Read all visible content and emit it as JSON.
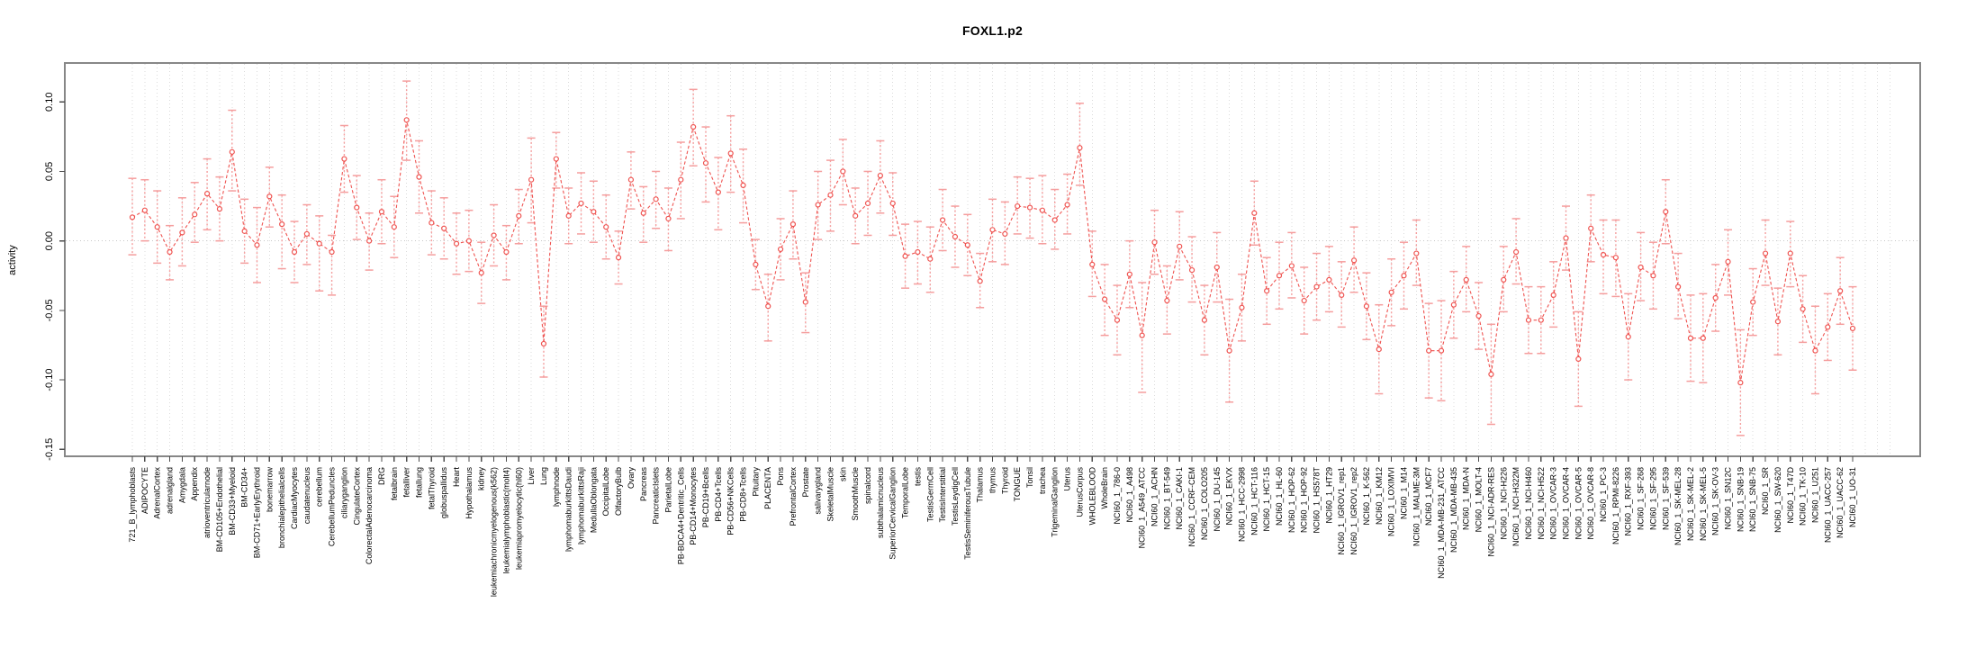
{
  "chart_data": {
    "type": "line",
    "title": "FOXL1.p2",
    "ylabel": "activity",
    "xlabel": "",
    "legend": "none",
    "grid": "vertical dotted gridline per category; dotted horizontal line at y=0",
    "marker": "open-circle",
    "series_color": "#ef5350",
    "errorbar_color": "#f59e9e",
    "grid_color": "#dbdbdb",
    "zero_line_color": "#c6c6c6",
    "box_color": "#878787",
    "tick_color": "#4d4d4d",
    "ylim": [
      -0.155,
      0.128
    ],
    "yticks": [
      0.1,
      0.05,
      0.0,
      -0.05,
      -0.1,
      -0.15
    ],
    "ytick_labels": [
      "0.10",
      "0.05",
      "0.00",
      "-0.05",
      "-0.10",
      "-0.15"
    ],
    "categories": [
      "721_B_lymphoblasts",
      "ADIPOCYTE",
      "AdrenalCortex",
      "adrenalgland",
      "Amygdala",
      "Appendix",
      "atrioventricularnode",
      "BM-CD105+Endothelial",
      "BM-CD33+Myeloid",
      "BM-CD34+",
      "BM-CD71+EarlyErythroid",
      "bonemarrow",
      "bronchialepithelialcells",
      "CardiacMyocytes",
      "caudatenucleus",
      "cerebellum",
      "CerebellumPeduncles",
      "ciliaryganglion",
      "CingulateCortex",
      "ColorectalAdenocarcinoma",
      "DRG",
      "fetalbrain",
      "fetalliver",
      "fetallung",
      "fetalThyroid",
      "globuspallidus",
      "Heart",
      "Hypothalamus",
      "kidney",
      "leukemiachronicmyelogenous(k562)",
      "leukemialymphoblastic(molt4)",
      "leukemiapromyelocytic(hl60)",
      "Liver",
      "Lung",
      "lymphnode",
      "lymphomaburkittsDaudi",
      "lymphomaburkittsRaji",
      "MedullaOblongata",
      "OccipitalLobe",
      "OlfactoryBulb",
      "Ovary",
      "Pancreas",
      "PancreaticIslets",
      "ParietalLobe",
      "PB-BDCA4+Dentritic_Cells",
      "PB-CD14+Monocytes",
      "PB-CD19+Bcells",
      "PB-CD4+Tcells",
      "PB-CD56+NKCells",
      "PB-CD8+Tcells",
      "Pituitary",
      "PLACENTA",
      "Pons",
      "PrefrontalCortex",
      "Prostate",
      "salivarygland",
      "SkeletalMuscle",
      "skin",
      "SmoothMuscle",
      "spinalcord",
      "subthalamicnucleus",
      "SuperiorCervicalGanglion",
      "TemporalLobe",
      "testis",
      "TestisGermCell",
      "TestisInterstitial",
      "TestisLeydigCell",
      "TestisSeminiferousTubule",
      "Thalamus",
      "thymus",
      "Thyroid",
      "TONGUE",
      "Tonsil",
      "trachea",
      "TrigeminalGanglion",
      "Uterus",
      "UterusCorpus",
      "WHOLEBLOOD",
      "WholeBrain",
      "NCI60_1_786-0",
      "NCI60_1_A498",
      "NCI60_1_A549_ATCC",
      "NCI60_1_ACHN",
      "NCI60_1_BT-549",
      "NCI60_1_CAKI-1",
      "NCI60_1_CCRF-CEM",
      "NCI60_1_COLO205",
      "NCI60_1_DU-145",
      "NCI60_1_EKVX",
      "NCI60_1_HCC-2998",
      "NCI60_1_HCT-116",
      "NCI60_1_HCT-15",
      "NCI60_1_HL-60",
      "NCI60_1_HOP-62",
      "NCI60_1_HOP-92",
      "NCI60_1_HS578T",
      "NCI60_1_HT29",
      "NCI60_1_IGROV1_rep1",
      "NCI60_1_IGROV1_rep2",
      "NCI60_1_K-562",
      "NCI60_1_KM12",
      "NCI60_1_LOXIMVI",
      "NCI60_1_M14",
      "NCI60_1_MALME-3M",
      "NCI60_1_MCF7",
      "NCI60_1_MDA-MB-231_ATCC",
      "NCI60_1_MDA-MB-435",
      "NCI60_1_MDA-N",
      "NCI60_1_MOLT-4",
      "NCI60_1_NCI-ADR-RES",
      "NCI60_1_NCI-H226",
      "NCI60_1_NCI-H322M",
      "NCI60_1_NCI-H460",
      "NCI60_1_NCI-H522",
      "NCI60_1_OVCAR-3",
      "NCI60_1_OVCAR-4",
      "NCI60_1_OVCAR-5",
      "NCI60_1_OVCAR-8",
      "NCI60_1_PC-3",
      "NCI60_1_RPMI-8226",
      "NCI60_1_RXF-393",
      "NCI60_1_SF-268",
      "NCI60_1_SF-295",
      "NCI60_1_SF-539",
      "NCI60_1_SK-MEL-28",
      "NCI60_1_SK-MEL-2",
      "NCI60_1_SK-MEL-5",
      "NCI60_1_SK-OV-3",
      "NCI60_1_SN12C",
      "NCI60_1_SNB-19",
      "NCI60_1_SNB-75",
      "NCI60_1_SR",
      "NCI60_1_SW-620",
      "NCI60_1_T47D",
      "NCI60_1_TK-10",
      "NCI60_1_U251",
      "NCI60_1_UACC-257",
      "NCI60_1_UACC-62",
      "NCI60_1_UO-31"
    ],
    "values": [
      0.017,
      0.022,
      0.01,
      -0.008,
      0.006,
      0.019,
      0.034,
      0.023,
      0.064,
      0.007,
      -0.003,
      0.032,
      0.012,
      -0.008,
      0.005,
      -0.002,
      -0.008,
      0.059,
      0.024,
      0.0,
      0.021,
      0.01,
      0.087,
      0.046,
      0.013,
      0.009,
      -0.002,
      0.0,
      -0.023,
      0.004,
      -0.008,
      0.018,
      0.044,
      -0.074,
      0.059,
      0.018,
      0.027,
      0.021,
      0.01,
      -0.012,
      0.044,
      0.02,
      0.03,
      0.016,
      0.044,
      0.082,
      0.056,
      0.035,
      0.063,
      0.04,
      -0.017,
      -0.047,
      -0.006,
      0.012,
      -0.044,
      0.026,
      0.033,
      0.05,
      0.018,
      0.027,
      0.047,
      0.027,
      -0.011,
      -0.008,
      -0.013,
      0.015,
      0.003,
      -0.003,
      -0.029,
      0.008,
      0.005,
      0.025,
      0.024,
      0.022,
      0.015,
      0.026,
      0.067,
      -0.017,
      -0.042,
      -0.057,
      -0.024,
      -0.068,
      -0.001,
      -0.043,
      -0.004,
      -0.021,
      -0.057,
      -0.019,
      -0.079,
      -0.048,
      0.02,
      -0.036,
      -0.025,
      -0.018,
      -0.043,
      -0.033,
      -0.028,
      -0.039,
      -0.014,
      -0.047,
      -0.078,
      -0.037,
      -0.025,
      -0.009,
      -0.079,
      -0.079,
      -0.046,
      -0.028,
      -0.054,
      -0.096,
      -0.028,
      -0.008,
      -0.057,
      -0.057,
      -0.039,
      0.002,
      -0.085,
      0.009,
      -0.01,
      -0.012,
      -0.069,
      -0.019,
      -0.025,
      0.021,
      -0.033,
      -0.07,
      -0.07,
      -0.041,
      -0.015,
      -0.102,
      -0.044,
      -0.009,
      -0.058,
      -0.009,
      -0.049,
      -0.079,
      -0.062,
      -0.036,
      -0.063
    ],
    "err_low": [
      -0.01,
      0.0,
      -0.016,
      -0.028,
      -0.018,
      -0.001,
      0.008,
      0.0,
      0.036,
      -0.016,
      -0.03,
      0.01,
      -0.02,
      -0.03,
      -0.017,
      -0.036,
      -0.039,
      0.035,
      0.001,
      -0.021,
      -0.002,
      -0.012,
      0.058,
      0.02,
      -0.01,
      -0.013,
      -0.024,
      -0.022,
      -0.045,
      -0.018,
      -0.028,
      -0.002,
      0.013,
      -0.098,
      0.038,
      -0.002,
      0.005,
      -0.001,
      -0.013,
      -0.031,
      0.023,
      -0.001,
      0.009,
      -0.007,
      0.016,
      0.054,
      0.028,
      0.008,
      0.035,
      0.013,
      -0.035,
      -0.072,
      -0.028,
      -0.013,
      -0.066,
      0.001,
      0.007,
      0.026,
      -0.002,
      0.004,
      0.02,
      0.004,
      -0.034,
      -0.031,
      -0.037,
      -0.007,
      -0.019,
      -0.025,
      -0.048,
      -0.015,
      -0.017,
      0.005,
      0.002,
      -0.002,
      -0.006,
      0.005,
      0.04,
      -0.04,
      -0.068,
      -0.082,
      -0.048,
      -0.109,
      -0.024,
      -0.067,
      -0.028,
      -0.044,
      -0.082,
      -0.044,
      -0.116,
      -0.072,
      -0.003,
      -0.06,
      -0.049,
      -0.041,
      -0.067,
      -0.057,
      -0.051,
      -0.062,
      -0.037,
      -0.071,
      -0.11,
      -0.061,
      -0.049,
      -0.032,
      -0.113,
      -0.115,
      -0.07,
      -0.051,
      -0.078,
      -0.132,
      -0.051,
      -0.031,
      -0.081,
      -0.081,
      -0.062,
      -0.021,
      -0.119,
      -0.015,
      -0.038,
      -0.04,
      -0.1,
      -0.043,
      -0.049,
      -0.002,
      -0.056,
      -0.101,
      -0.102,
      -0.065,
      -0.039,
      -0.14,
      -0.068,
      -0.032,
      -0.082,
      -0.033,
      -0.073,
      -0.11,
      -0.086,
      -0.06,
      -0.093
    ],
    "err_high": [
      0.045,
      0.044,
      0.036,
      0.011,
      0.031,
      0.042,
      0.059,
      0.046,
      0.094,
      0.03,
      0.024,
      0.053,
      0.033,
      0.014,
      0.026,
      0.018,
      0.004,
      0.083,
      0.047,
      0.02,
      0.044,
      0.032,
      0.115,
      0.072,
      0.036,
      0.031,
      0.02,
      0.022,
      -0.001,
      0.026,
      0.011,
      0.037,
      0.074,
      -0.047,
      0.078,
      0.038,
      0.049,
      0.043,
      0.033,
      0.007,
      0.064,
      0.039,
      0.05,
      0.038,
      0.071,
      0.109,
      0.082,
      0.06,
      0.09,
      0.066,
      0.001,
      -0.024,
      0.016,
      0.036,
      -0.023,
      0.05,
      0.058,
      0.073,
      0.038,
      0.05,
      0.072,
      0.049,
      0.012,
      0.014,
      0.01,
      0.037,
      0.025,
      0.019,
      -0.009,
      0.03,
      0.028,
      0.046,
      0.045,
      0.047,
      0.037,
      0.048,
      0.099,
      0.007,
      -0.017,
      -0.032,
      0.0,
      -0.03,
      0.022,
      -0.018,
      0.021,
      0.003,
      -0.032,
      0.006,
      -0.042,
      -0.024,
      0.043,
      -0.012,
      -0.001,
      0.006,
      -0.019,
      -0.009,
      -0.004,
      -0.015,
      0.01,
      -0.023,
      -0.046,
      -0.013,
      -0.001,
      0.015,
      -0.045,
      -0.043,
      -0.022,
      -0.004,
      -0.03,
      -0.06,
      -0.004,
      0.016,
      -0.033,
      -0.033,
      -0.015,
      0.025,
      -0.051,
      0.033,
      0.015,
      0.015,
      -0.038,
      0.006,
      -0.001,
      0.044,
      -0.009,
      -0.039,
      -0.038,
      -0.017,
      0.008,
      -0.064,
      -0.02,
      0.015,
      -0.034,
      0.014,
      -0.025,
      -0.047,
      -0.038,
      -0.012,
      -0.033
    ]
  }
}
